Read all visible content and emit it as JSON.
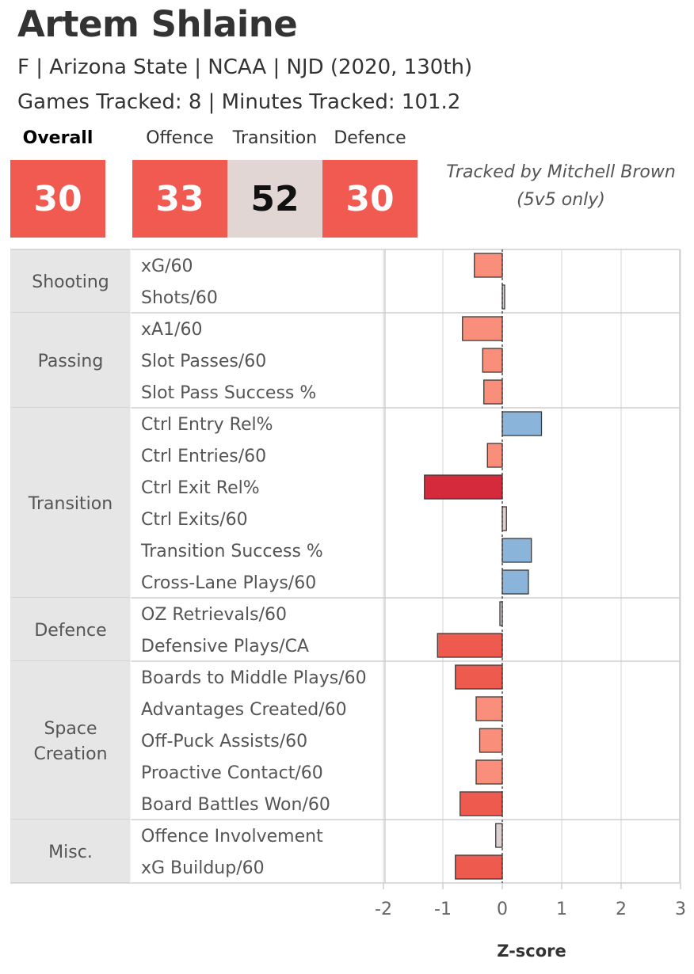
{
  "player": {
    "name": "Artem Shlaine",
    "info": "F | Arizona State | NCAA | NJD (2020, 130th)",
    "tracked": "Games Tracked: 8 | Minutes Tracked: 101.2"
  },
  "scores": {
    "overall_label": "Overall",
    "overall": "30",
    "offence_label": "Offence",
    "offence": "33",
    "transition_label": "Transition",
    "transition": "52",
    "defence_label": "Defence",
    "defence": "30"
  },
  "note": {
    "line1": "Tracked by Mitchell Brown",
    "line2": "(5v5 only)"
  },
  "colors": {
    "score_red": "#f05a50",
    "score_neutral": "#e2d6d4",
    "bar_dark_red": "#d42a3c",
    "bar_red": "#ee5a4e",
    "bar_salmon": "#f98e7a",
    "bar_neutral": "#ddd0cf",
    "bar_blue": "#8ab4d9",
    "category_bg": "#e6e6e6",
    "grid": "#d4d4d4"
  },
  "chart_data": {
    "type": "bar",
    "orientation": "horizontal",
    "xlabel": "Z-score",
    "xlim": [
      -2,
      3
    ],
    "x_ticks": [
      "-2",
      "-1",
      "0",
      "1",
      "2",
      "3"
    ],
    "zero_line": "dashed",
    "groups": [
      {
        "name": "Shooting",
        "lines": [
          "Shooting"
        ],
        "metrics": [
          {
            "label": "xG/60",
            "value": -0.47,
            "color": "salmon"
          },
          {
            "label": "Shots/60",
            "value": 0.02,
            "color": "neutral"
          }
        ]
      },
      {
        "name": "Passing",
        "lines": [
          "Passing"
        ],
        "metrics": [
          {
            "label": "xA1/60",
            "value": -0.67,
            "color": "salmon"
          },
          {
            "label": "Slot Passes/60",
            "value": -0.33,
            "color": "salmon"
          },
          {
            "label": "Slot Pass Success %",
            "value": -0.31,
            "color": "salmon"
          }
        ]
      },
      {
        "name": "Transition",
        "lines": [
          "Transition"
        ],
        "metrics": [
          {
            "label": "Ctrl Entry Rel%",
            "value": 0.66,
            "color": "blue"
          },
          {
            "label": "Ctrl Entries/60",
            "value": -0.25,
            "color": "salmon"
          },
          {
            "label": "Ctrl Exit Rel%",
            "value": -1.31,
            "color": "dark_red"
          },
          {
            "label": "Ctrl Exits/60",
            "value": 0.07,
            "color": "neutral"
          },
          {
            "label": "Transition Success %",
            "value": 0.49,
            "color": "blue"
          },
          {
            "label": "Cross-Lane Plays/60",
            "value": 0.44,
            "color": "blue"
          }
        ]
      },
      {
        "name": "Defence",
        "lines": [
          "Defence"
        ],
        "metrics": [
          {
            "label": "OZ Retrievals/60",
            "value": -0.02,
            "color": "neutral"
          },
          {
            "label": "Defensive Plays/CA",
            "value": -1.09,
            "color": "red"
          }
        ]
      },
      {
        "name": "Space Creation",
        "lines": [
          "Space",
          "Creation"
        ],
        "metrics": [
          {
            "label": "Boards to Middle Plays/60",
            "value": -0.79,
            "color": "red"
          },
          {
            "label": "Advantages Created/60",
            "value": -0.44,
            "color": "salmon"
          },
          {
            "label": "Off-Puck Assists/60",
            "value": -0.38,
            "color": "salmon"
          },
          {
            "label": "Proactive Contact/60",
            "value": -0.44,
            "color": "salmon"
          },
          {
            "label": "Board Battles Won/60",
            "value": -0.71,
            "color": "red"
          }
        ]
      },
      {
        "name": "Misc.",
        "lines": [
          "Misc."
        ],
        "metrics": [
          {
            "label": "Offence Involvement",
            "value": -0.11,
            "color": "neutral"
          },
          {
            "label": "xG Buildup/60",
            "value": -0.79,
            "color": "red"
          }
        ]
      }
    ]
  }
}
